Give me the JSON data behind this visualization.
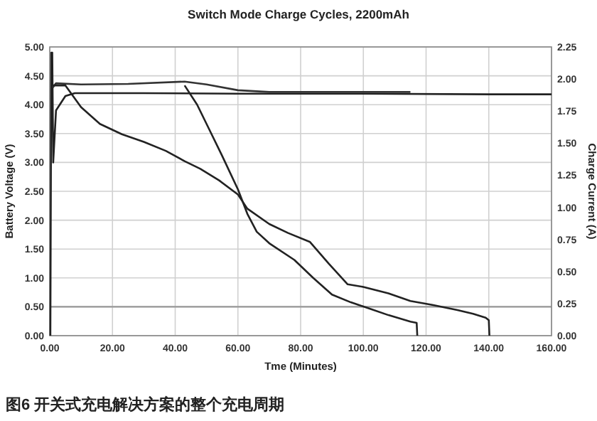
{
  "chart_data": {
    "type": "line",
    "title": "Switch Mode Charge Cycles, 2200mAh",
    "xlabel": "Tme (Minutes)",
    "ylabel": "Battery Voltage (V)",
    "y2label": "Charge Current (A)",
    "annotations": [
      "图6   开关式充电解决方案的整个充电周期"
    ],
    "xlim": [
      0,
      160
    ],
    "xticks": [
      {
        "value": 0,
        "label": "0.00"
      },
      {
        "value": 20,
        "label": "20.00"
      },
      {
        "value": 40,
        "label": "40.00"
      },
      {
        "value": 60,
        "label": "60.00"
      },
      {
        "value": 80,
        "label": "80.00"
      },
      {
        "value": 100,
        "label": "100.00"
      },
      {
        "value": 120,
        "label": "120.00"
      },
      {
        "value": 140,
        "label": "140.00"
      },
      {
        "value": 160,
        "label": "160.00"
      }
    ],
    "ylim": [
      0,
      5
    ],
    "yticks": [
      {
        "value": 0,
        "label": "0.00"
      },
      {
        "value": 0.5,
        "label": "0.50"
      },
      {
        "value": 1,
        "label": "1.00"
      },
      {
        "value": 1.5,
        "label": "1.50"
      },
      {
        "value": 2,
        "label": "2.00"
      },
      {
        "value": 2.5,
        "label": "2.50"
      },
      {
        "value": 3,
        "label": "3.00"
      },
      {
        "value": 3.5,
        "label": "3.50"
      },
      {
        "value": 4,
        "label": "4.00"
      },
      {
        "value": 4.5,
        "label": "4.50"
      },
      {
        "value": 5,
        "label": "5.00"
      }
    ],
    "y2lim": [
      0,
      2.25
    ],
    "y2ticks": [
      {
        "value": 0,
        "label": "0.00"
      },
      {
        "value": 0.25,
        "label": "0.25"
      },
      {
        "value": 0.5,
        "label": "0.50"
      },
      {
        "value": 0.75,
        "label": "0.75"
      },
      {
        "value": 1,
        "label": "1.00"
      },
      {
        "value": 1.25,
        "label": "1.25"
      },
      {
        "value": 1.5,
        "label": "1.50"
      },
      {
        "value": 1.75,
        "label": "1.75"
      },
      {
        "value": 2,
        "label": "2.00"
      },
      {
        "value": 2.25,
        "label": "2.25"
      }
    ],
    "grid": true,
    "line_style": "solid",
    "marker": "none",
    "ref_lines": [
      {
        "axis": "y",
        "value": 0.5,
        "color": "#999999"
      }
    ],
    "series": [
      {
        "color": "#222222",
        "x": [
          0.2,
          0.5,
          0.8,
          1.1,
          2,
          5,
          8,
          30,
          60,
          100,
          140,
          160
        ],
        "values": [
          0,
          4.9,
          4.9,
          3.0,
          3.9,
          4.15,
          4.2,
          4.2,
          4.19,
          4.19,
          4.18,
          4.18
        ]
      },
      {
        "color": "#333333",
        "x": [
          1,
          2,
          10,
          25,
          43,
          50,
          60,
          70,
          90,
          115
        ],
        "values": [
          4.3,
          4.37,
          4.35,
          4.36,
          4.4,
          4.35,
          4.25,
          4.22,
          4.22,
          4.22
        ]
      },
      {
        "color": "#222222",
        "axis": "y2",
        "x": [
          1,
          5,
          10,
          16,
          23,
          30,
          37,
          43,
          48,
          54,
          60,
          63,
          70,
          76,
          83,
          89,
          95,
          100,
          108,
          115,
          122,
          130,
          135,
          139,
          140,
          140.2
        ],
        "values": [
          1.95,
          1.95,
          1.78,
          1.65,
          1.57,
          1.51,
          1.44,
          1.36,
          1.3,
          1.21,
          1.1,
          0.99,
          0.87,
          0.8,
          0.73,
          0.56,
          0.4,
          0.38,
          0.33,
          0.27,
          0.24,
          0.2,
          0.17,
          0.14,
          0.12,
          0
        ]
      },
      {
        "color": "#222222",
        "axis": "y2",
        "x": [
          43,
          47,
          51,
          55,
          60,
          63,
          66,
          70,
          78,
          84,
          90,
          96,
          102,
          108,
          115,
          117,
          117.2
        ],
        "values": [
          1.95,
          1.8,
          1.6,
          1.4,
          1.14,
          0.95,
          0.81,
          0.72,
          0.59,
          0.45,
          0.32,
          0.26,
          0.21,
          0.16,
          0.11,
          0.1,
          0
        ]
      }
    ]
  }
}
